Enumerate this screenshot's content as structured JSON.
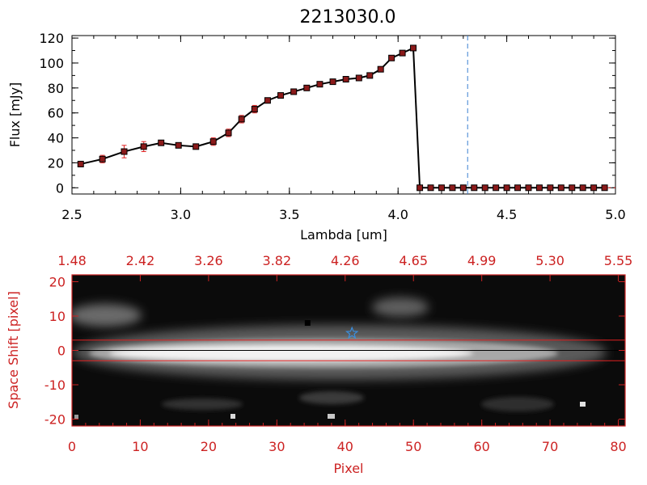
{
  "chart_data": [
    {
      "type": "line",
      "title": "2213030.0",
      "xlabel": "Lambda [um]",
      "ylabel": "Flux [mJy]",
      "xlim": [
        2.5,
        5.0
      ],
      "ylim": [
        -5,
        122
      ],
      "x_ticks": [
        "2.5",
        "3.0",
        "3.5",
        "4.0",
        "4.5",
        "5.0"
      ],
      "y_ticks": [
        "0",
        "20",
        "40",
        "60",
        "80",
        "100",
        "120"
      ],
      "vline_x": 4.32,
      "colors": {
        "line": "#000000",
        "marker": "#8b1a1a",
        "errorbar": "#e02020",
        "vline": "#3a7fd0",
        "zero_line": "#e02020"
      },
      "x": [
        2.54,
        2.64,
        2.74,
        2.83,
        2.91,
        2.99,
        3.07,
        3.15,
        3.22,
        3.28,
        3.34,
        3.4,
        3.46,
        3.52,
        3.58,
        3.64,
        3.7,
        3.76,
        3.82,
        3.87,
        3.92,
        3.97,
        4.02,
        4.07,
        4.1,
        4.15,
        4.2,
        4.25,
        4.3,
        4.35,
        4.4,
        4.45,
        4.5,
        4.55,
        4.6,
        4.65,
        4.7,
        4.75,
        4.8,
        4.85,
        4.9,
        4.95
      ],
      "y": [
        19,
        23,
        29,
        33,
        36,
        34,
        33,
        37,
        44,
        55,
        63,
        70,
        74,
        77,
        80,
        83,
        85,
        87,
        88,
        90,
        95,
        104,
        108,
        112,
        0,
        0,
        0,
        0,
        0,
        0,
        0,
        0,
        0,
        0,
        0,
        0,
        0,
        0,
        0,
        0,
        0,
        0
      ],
      "yerr": [
        2,
        3,
        5,
        4,
        2,
        2,
        2,
        3,
        3,
        3,
        3,
        2,
        2,
        2,
        2,
        2,
        2,
        2,
        2,
        2,
        2,
        2,
        2,
        2,
        0,
        0,
        0,
        0,
        0,
        0,
        0,
        0,
        0,
        0,
        0,
        0,
        0,
        0,
        0,
        0,
        0,
        0
      ]
    },
    {
      "type": "heatmap",
      "xlabel": "Pixel",
      "ylabel": "Space Shift [pixel]",
      "xlim": [
        0,
        81
      ],
      "ylim": [
        -22,
        22
      ],
      "x_ticks": [
        "0",
        "10",
        "20",
        "30",
        "40",
        "50",
        "60",
        "70",
        "80"
      ],
      "y_ticks": [
        "-20",
        "-10",
        "0",
        "10",
        "20"
      ],
      "top_axis_ticks": [
        "1.48",
        "2.42",
        "3.26",
        "3.82",
        "4.26",
        "4.65",
        "4.99",
        "5.30",
        "5.55"
      ],
      "aperture_lines_y": [
        3,
        -3
      ],
      "center_line_y": 0,
      "star_marker": {
        "x": 41,
        "y": 5
      },
      "dark_spot": {
        "x": 34.5,
        "y": 8
      },
      "colors": {
        "axes": "#cc2222",
        "aperture": "#e02020",
        "center": "#000000",
        "star": "#3a8fe0"
      }
    }
  ]
}
